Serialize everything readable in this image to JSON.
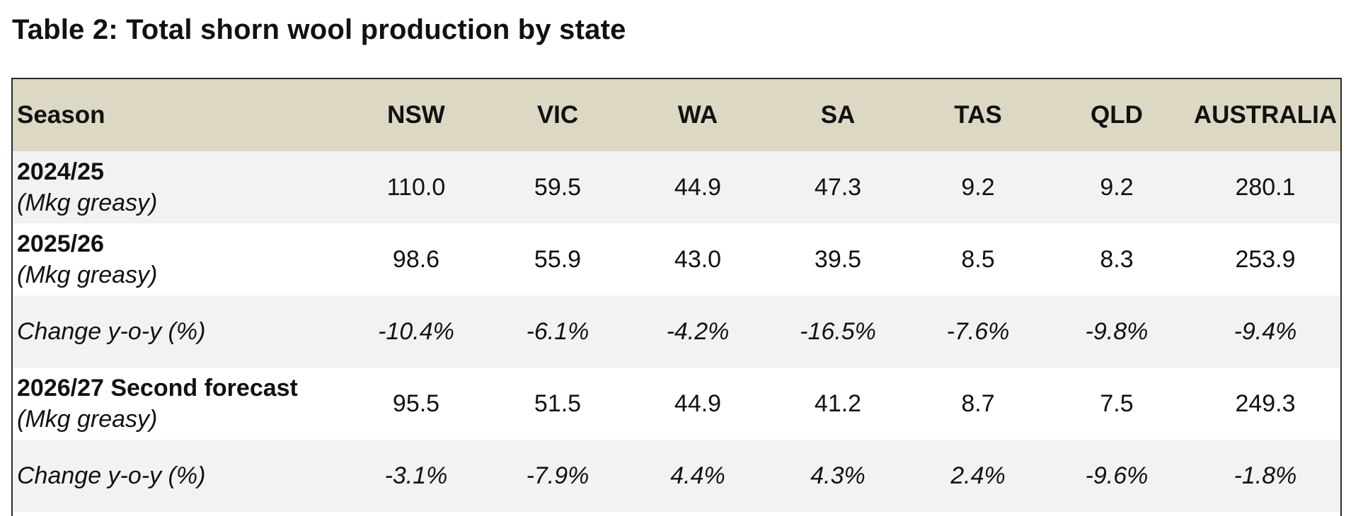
{
  "title": "Table 2: Total shorn wool production by state",
  "columns": [
    "Season",
    "NSW",
    "VIC",
    "WA",
    "SA",
    "TAS",
    "QLD",
    "AUSTRALIA"
  ],
  "rows": [
    {
      "label": "2024/25",
      "sublabel": "(Mkg greasy)",
      "values": [
        "110.0",
        "59.5",
        "44.9",
        "47.3",
        "9.2",
        "9.2",
        "280.1"
      ]
    },
    {
      "label": "2025/26",
      "sublabel": "(Mkg greasy)",
      "values": [
        "98.6",
        "55.9",
        "43.0",
        "39.5",
        "8.5",
        "8.3",
        "253.9"
      ]
    },
    {
      "label": "Change y-o-y (%)",
      "values": [
        "-10.4%",
        "-6.1%",
        "-4.2%",
        "-16.5%",
        "-7.6%",
        "-9.8%",
        "-9.4%"
      ]
    },
    {
      "label": "2026/27 Second forecast",
      "sublabel": "(Mkg greasy)",
      "values": [
        "95.5",
        "51.5",
        "44.9",
        "41.2",
        "8.7",
        "7.5",
        "249.3"
      ]
    },
    {
      "label": "Change y-o-y (%)",
      "values": [
        "-3.1%",
        "-7.9%",
        "4.4%",
        "4.3%",
        "2.4%",
        "-9.6%",
        "-1.8%"
      ]
    }
  ],
  "colors": {
    "header_bg": "#ddd8c4",
    "stripe_bg": "#f2f2f2",
    "border": "#2b2b2b"
  }
}
